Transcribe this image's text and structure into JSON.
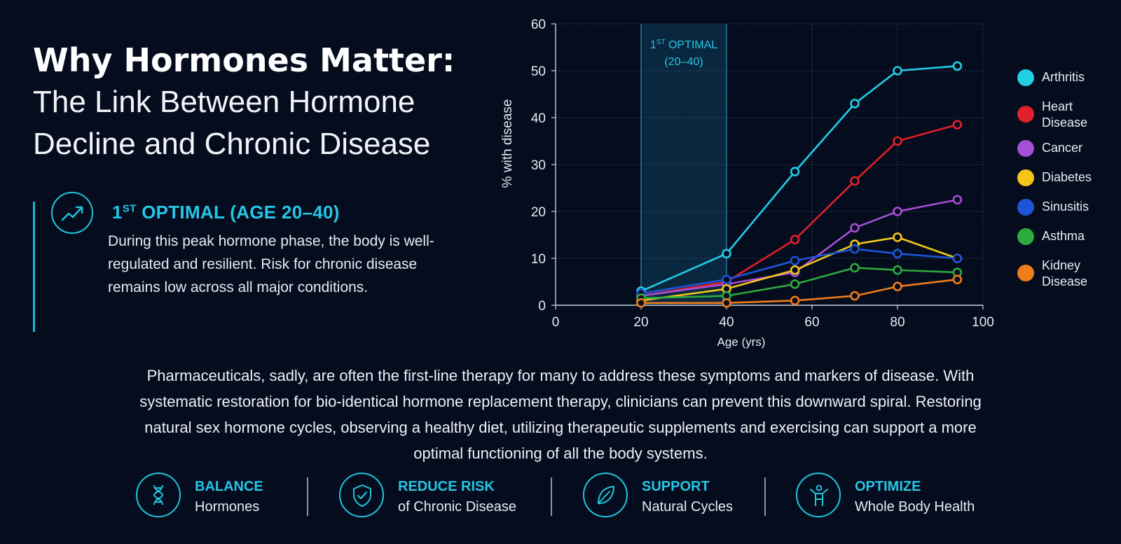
{
  "header": {
    "title": "Why Hormones Matter:",
    "subtitle_line1": "The Link Between Hormone",
    "subtitle_line2": "Decline and Chronic Disease"
  },
  "optimal": {
    "heading_prefix": "1",
    "heading_sup": "ST",
    "heading_rest": " OPTIMAL (AGE 20–40)",
    "icon": "trending-up-icon",
    "text": "During this peak hormone phase, the body is well-regulated and resilient. Risk for chronic disease remains low across all major conditions."
  },
  "chart_data": {
    "type": "line",
    "xlabel": "Age (yrs)",
    "ylabel": "% with disease",
    "xlim": [
      0,
      100
    ],
    "ylim": [
      0,
      60
    ],
    "xticks": [
      0,
      20,
      40,
      60,
      80,
      100
    ],
    "yticks": [
      0,
      10,
      20,
      30,
      40,
      50,
      60
    ],
    "grid": true,
    "legend_position": "right",
    "shaded_region": {
      "x_range": [
        20,
        40
      ],
      "label_prefix": "1",
      "label_sup": "ST",
      "label_rest": " OPTIMAL",
      "label_line2": "(20–40)"
    },
    "x": [
      20,
      40,
      56,
      70,
      80,
      94
    ],
    "series": [
      {
        "name": "Arthritis",
        "color": "#22cde6",
        "values": [
          3,
          11,
          28.5,
          43,
          50,
          51
        ]
      },
      {
        "name": "Heart Disease",
        "color": "#e0202a",
        "values": [
          2,
          5,
          14,
          26.5,
          35,
          38.5
        ]
      },
      {
        "name": "Cancer",
        "color": "#a64fd6",
        "values": [
          2,
          4.5,
          7,
          16.5,
          20,
          22.5
        ]
      },
      {
        "name": "Diabetes",
        "color": "#f5c518",
        "values": [
          1,
          3.5,
          7.5,
          13,
          14.5,
          10
        ]
      },
      {
        "name": "Sinusitis",
        "color": "#1e55d8",
        "values": [
          2.5,
          5.5,
          9.5,
          12,
          11,
          10
        ]
      },
      {
        "name": "Asthma",
        "color": "#2eab3e",
        "values": [
          1.5,
          2,
          4.5,
          8,
          7.5,
          7
        ]
      },
      {
        "name": "Kidney Disease",
        "color": "#f07c1a",
        "values": [
          0.5,
          0.5,
          1,
          2,
          4,
          5.5
        ]
      }
    ]
  },
  "legend": [
    {
      "line1": "Arthritis",
      "line2": "",
      "color": "#22cde6"
    },
    {
      "line1": "Heart",
      "line2": "Disease",
      "color": "#e0202a"
    },
    {
      "line1": "Cancer",
      "line2": "",
      "color": "#a64fd6"
    },
    {
      "line1": "Diabetes",
      "line2": "",
      "color": "#f5c518"
    },
    {
      "line1": "Sinusitis",
      "line2": "",
      "color": "#1e55d8"
    },
    {
      "line1": "Asthma",
      "line2": "",
      "color": "#2eab3e"
    },
    {
      "line1": "Kidney",
      "line2": "Disease",
      "color": "#f07c1a"
    }
  ],
  "paragraph": {
    "line1": "Pharmaceuticals, sadly, are often the first-line therapy for many to address these symptoms and markers of disease. With",
    "line2": "systematic restoration for bio-identical hormone replacement therapy, clinicians can prevent this downward spiral. Restoring",
    "line3": "natural sex hormone cycles, observing a healthy diet, utilizing therapeutic supplements and exercising can support a more",
    "line4": "optimal functioning of all the body systems."
  },
  "features": [
    {
      "title": "BALANCE",
      "sub": "Hormones",
      "icon": "dna-icon"
    },
    {
      "title": "REDUCE RISK",
      "sub": "of Chronic Disease",
      "icon": "shield-check-icon"
    },
    {
      "title": "SUPPORT",
      "sub": "Natural Cycles",
      "icon": "leaf-icon"
    },
    {
      "title": "OPTIMIZE",
      "sub": "Whole Body Health",
      "icon": "person-icon"
    }
  ],
  "accent_color": "#26c6e6",
  "background_color": "#040c1e"
}
